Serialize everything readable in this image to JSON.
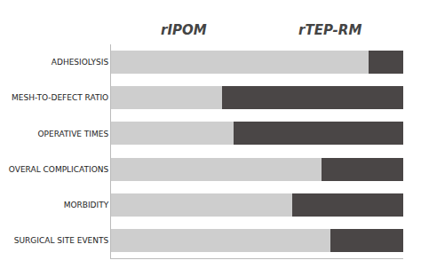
{
  "chart_data": {
    "type": "bar",
    "orientation": "horizontal",
    "stacked": true,
    "annotations": [
      "rIPOM",
      "rTEP-RM"
    ],
    "categories": [
      "ADHESIOLYSIS",
      "MESH-TO-DEFECT RATIO",
      "OPERATIVE TIMES",
      "OVERAL COMPLICATIONS",
      "MORBIDITY",
      "SURGICAL SITE EVENTS"
    ],
    "series": [
      {
        "color": "#cecece",
        "values": [
          0.88,
          0.38,
          0.42,
          0.72,
          0.62,
          0.75
        ]
      },
      {
        "color": "#4a4646",
        "values": [
          0.12,
          0.62,
          0.58,
          0.28,
          0.38,
          0.25
        ]
      }
    ],
    "xlim": [
      0,
      1
    ],
    "xticks": [],
    "tick_labels": "y",
    "grid": false
  }
}
